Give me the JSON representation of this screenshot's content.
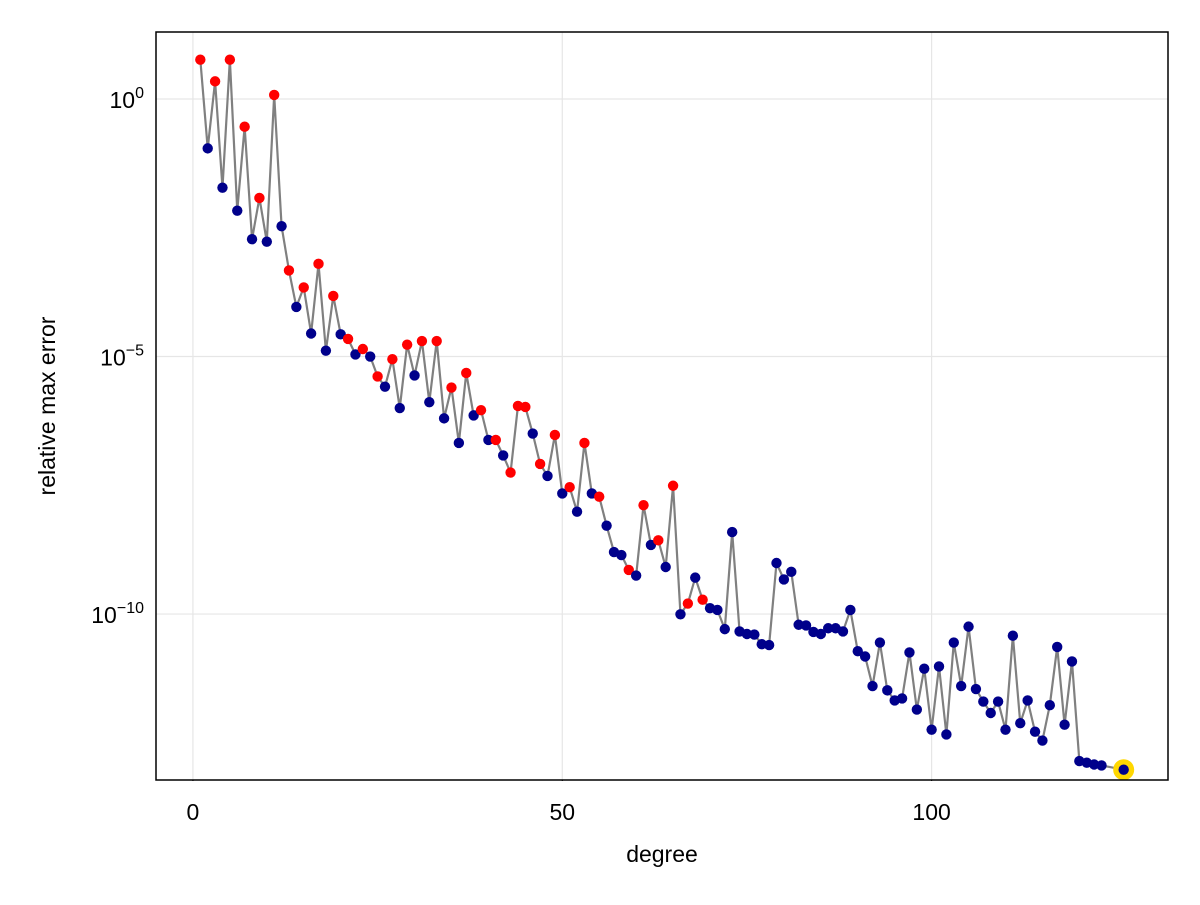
{
  "chart_data": {
    "type": "scatter",
    "title": "",
    "xlabel": "degree",
    "ylabel": "relative max error",
    "xlim": [
      -5,
      132
    ],
    "ylim": [
      6e-14,
      20
    ],
    "xscale": "linear",
    "yscale": "log",
    "grid": true,
    "legend": false,
    "x_ticks": [
      0,
      50,
      100
    ],
    "y_ticks": [
      {
        "value": 1,
        "base": "10",
        "exp": "0"
      },
      {
        "value": 1e-05,
        "base": "10",
        "exp": "−5"
      },
      {
        "value": 1e-10,
        "base": "10",
        "exp": "−10"
      }
    ],
    "colors": {
      "line": "#808080",
      "positive_point": "#ff0000",
      "negative_point": "#00008b",
      "highlight_ring": "#ffd700",
      "grid": "#e6e6e6",
      "frame": "#000000"
    },
    "series": [
      {
        "style": "connecting-line",
        "color": "#808080",
        "points": [
          [
            1,
            5.8
          ],
          [
            2,
            0.11
          ],
          [
            3,
            2.2
          ],
          [
            4,
            0.019
          ],
          [
            5,
            5.8
          ],
          [
            6,
            0.0068
          ],
          [
            7,
            0.29
          ],
          [
            8,
            0.0019
          ],
          [
            9,
            0.012
          ],
          [
            10,
            0.0017
          ],
          [
            11,
            1.2
          ],
          [
            12,
            0.0034
          ],
          [
            13,
            0.00047
          ],
          [
            14,
            9.2e-05
          ],
          [
            15,
            0.00022
          ],
          [
            16,
            2.8e-05
          ],
          [
            17,
            0.00063
          ],
          [
            18,
            1.3e-05
          ],
          [
            19,
            0.00015
          ],
          [
            20,
            2.7e-05
          ],
          [
            21,
            2.2e-05
          ],
          [
            22,
            1.1e-05
          ],
          [
            23,
            1.4e-05
          ],
          [
            24,
            1e-05
          ],
          [
            25,
            4.1e-06
          ],
          [
            26,
            2.6e-06
          ],
          [
            27,
            8.9e-06
          ],
          [
            28,
            1e-06
          ],
          [
            29,
            1.7e-05
          ],
          [
            30,
            4.3e-06
          ],
          [
            31,
            2e-05
          ],
          [
            32,
            1.3e-06
          ],
          [
            33,
            2e-05
          ],
          [
            34,
            6.3e-07
          ],
          [
            35,
            2.5e-06
          ],
          [
            36,
            2.1e-07
          ],
          [
            37,
            4.8e-06
          ],
          [
            38,
            7.2e-07
          ],
          [
            39,
            9.1e-07
          ],
          [
            40,
            2.4e-07
          ],
          [
            41,
            2.4e-07
          ],
          [
            42,
            1.2e-07
          ],
          [
            43,
            5.6e-08
          ],
          [
            44,
            1.1e-06
          ],
          [
            45,
            1.05e-06
          ],
          [
            46,
            3.2e-07
          ],
          [
            47,
            8.2e-08
          ],
          [
            48,
            4.8e-08
          ],
          [
            49,
            3e-07
          ],
          [
            50,
            2.2e-08
          ],
          [
            51,
            2.9e-08
          ],
          [
            52,
            9.7e-09
          ],
          [
            53,
            2.1e-07
          ],
          [
            54,
            2.2e-08
          ],
          [
            55,
            1.9e-08
          ],
          [
            56,
            5.2e-09
          ],
          [
            57,
            1.6e-09
          ],
          [
            58,
            1.4e-09
          ],
          [
            59,
            7.2e-10
          ],
          [
            60,
            5.6e-10
          ],
          [
            61,
            1.3e-08
          ],
          [
            62,
            2.2e-09
          ],
          [
            63,
            2.7e-09
          ],
          [
            64,
            8.2e-10
          ],
          [
            65,
            3.1e-08
          ],
          [
            66,
            9.9e-11
          ],
          [
            67,
            1.6e-10
          ],
          [
            68,
            5.1e-10
          ],
          [
            69,
            1.9e-10
          ],
          [
            70,
            1.3e-10
          ],
          [
            71,
            1.2e-10
          ],
          [
            72,
            5.1e-11
          ],
          [
            73,
            3.9e-09
          ],
          [
            74,
            4.6e-11
          ],
          [
            75,
            4.1e-11
          ],
          [
            76,
            4e-11
          ],
          [
            77,
            2.6e-11
          ],
          [
            78,
            2.5e-11
          ],
          [
            79,
            9.8e-10
          ],
          [
            80,
            4.7e-10
          ],
          [
            81,
            6.6e-10
          ],
          [
            82,
            6.2e-11
          ],
          [
            83,
            6e-11
          ],
          [
            84,
            4.5e-11
          ],
          [
            85,
            4.1e-11
          ],
          [
            86,
            5.3e-11
          ],
          [
            87,
            5.3e-11
          ],
          [
            88,
            4.6e-11
          ],
          [
            89,
            1.2e-10
          ],
          [
            90,
            1.9e-11
          ],
          [
            91,
            1.5e-11
          ],
          [
            92,
            4e-12
          ],
          [
            93,
            2.8e-11
          ],
          [
            94,
            3.3e-12
          ],
          [
            95,
            2.1e-12
          ],
          [
            96,
            2.3e-12
          ],
          [
            97,
            1.8e-11
          ],
          [
            98,
            1.4e-12
          ],
          [
            99,
            8.7e-12
          ],
          [
            100,
            5.7e-13
          ],
          [
            101,
            9.6e-12
          ],
          [
            102,
            4.6e-13
          ],
          [
            103,
            2.8e-11
          ],
          [
            104,
            4e-12
          ],
          [
            105,
            5.7e-11
          ],
          [
            106,
            3.5e-12
          ],
          [
            107,
            2e-12
          ],
          [
            108,
            1.2e-12
          ],
          [
            109,
            2e-12
          ],
          [
            110,
            5.7e-13
          ],
          [
            111,
            3.8e-11
          ],
          [
            112,
            7.6e-13
          ],
          [
            113,
            2.1e-12
          ],
          [
            114,
            5.2e-13
          ],
          [
            115,
            3.5e-13
          ],
          [
            116,
            1.7e-12
          ],
          [
            117,
            2.3e-11
          ],
          [
            118,
            7.1e-13
          ],
          [
            119,
            1.2e-11
          ],
          [
            120,
            1.4e-13
          ],
          [
            121,
            1.3e-13
          ],
          [
            122,
            1.2e-13
          ],
          [
            123,
            1.15e-13
          ],
          [
            126,
            9.5e-14
          ]
        ]
      }
    ],
    "markers": [
      {
        "x": 1,
        "y": 5.8,
        "sign": "pos"
      },
      {
        "x": 2,
        "y": 0.11,
        "sign": "neg"
      },
      {
        "x": 3,
        "y": 2.2,
        "sign": "pos"
      },
      {
        "x": 4,
        "y": 0.019,
        "sign": "neg"
      },
      {
        "x": 5,
        "y": 5.8,
        "sign": "pos"
      },
      {
        "x": 6,
        "y": 0.0068,
        "sign": "neg"
      },
      {
        "x": 7,
        "y": 0.29,
        "sign": "pos"
      },
      {
        "x": 8,
        "y": 0.0019,
        "sign": "neg"
      },
      {
        "x": 9,
        "y": 0.012,
        "sign": "pos"
      },
      {
        "x": 10,
        "y": 0.0017,
        "sign": "neg"
      },
      {
        "x": 11,
        "y": 1.2,
        "sign": "pos"
      },
      {
        "x": 12,
        "y": 0.0034,
        "sign": "neg"
      },
      {
        "x": 13,
        "y": 0.00047,
        "sign": "pos"
      },
      {
        "x": 14,
        "y": 9.2e-05,
        "sign": "neg"
      },
      {
        "x": 15,
        "y": 0.00022,
        "sign": "pos"
      },
      {
        "x": 16,
        "y": 2.8e-05,
        "sign": "neg"
      },
      {
        "x": 17,
        "y": 0.00063,
        "sign": "pos"
      },
      {
        "x": 18,
        "y": 1.3e-05,
        "sign": "neg"
      },
      {
        "x": 19,
        "y": 0.00015,
        "sign": "pos"
      },
      {
        "x": 20,
        "y": 2.7e-05,
        "sign": "neg"
      },
      {
        "x": 21,
        "y": 2.2e-05,
        "sign": "pos"
      },
      {
        "x": 22,
        "y": 1.1e-05,
        "sign": "neg"
      },
      {
        "x": 23,
        "y": 1.4e-05,
        "sign": "pos"
      },
      {
        "x": 24,
        "y": 1e-05,
        "sign": "neg"
      },
      {
        "x": 25,
        "y": 4.1e-06,
        "sign": "pos"
      },
      {
        "x": 26,
        "y": 2.6e-06,
        "sign": "neg"
      },
      {
        "x": 27,
        "y": 8.9e-06,
        "sign": "pos"
      },
      {
        "x": 28,
        "y": 1e-06,
        "sign": "neg"
      },
      {
        "x": 29,
        "y": 1.7e-05,
        "sign": "pos"
      },
      {
        "x": 30,
        "y": 4.3e-06,
        "sign": "neg"
      },
      {
        "x": 31,
        "y": 2e-05,
        "sign": "pos"
      },
      {
        "x": 32,
        "y": 1.3e-06,
        "sign": "neg"
      },
      {
        "x": 33,
        "y": 2e-05,
        "sign": "pos"
      },
      {
        "x": 34,
        "y": 6.3e-07,
        "sign": "neg"
      },
      {
        "x": 35,
        "y": 2.5e-06,
        "sign": "pos"
      },
      {
        "x": 36,
        "y": 2.1e-07,
        "sign": "neg"
      },
      {
        "x": 37,
        "y": 4.8e-06,
        "sign": "pos"
      },
      {
        "x": 38,
        "y": 7.2e-07,
        "sign": "neg"
      },
      {
        "x": 39,
        "y": 9.1e-07,
        "sign": "pos"
      },
      {
        "x": 40,
        "y": 2.4e-07,
        "sign": "neg"
      },
      {
        "x": 41,
        "y": 2.4e-07,
        "sign": "pos"
      },
      {
        "x": 42,
        "y": 1.2e-07,
        "sign": "neg"
      },
      {
        "x": 43,
        "y": 5.6e-08,
        "sign": "pos"
      },
      {
        "x": 44,
        "y": 1.1e-06,
        "sign": "pos"
      },
      {
        "x": 45,
        "y": 1.05e-06,
        "sign": "pos"
      },
      {
        "x": 46,
        "y": 3.2e-07,
        "sign": "neg"
      },
      {
        "x": 47,
        "y": 8.2e-08,
        "sign": "pos"
      },
      {
        "x": 48,
        "y": 4.8e-08,
        "sign": "neg"
      },
      {
        "x": 49,
        "y": 3e-07,
        "sign": "pos"
      },
      {
        "x": 50,
        "y": 2.2e-08,
        "sign": "neg"
      },
      {
        "x": 51,
        "y": 2.9e-08,
        "sign": "pos"
      },
      {
        "x": 52,
        "y": 9.7e-09,
        "sign": "neg"
      },
      {
        "x": 53,
        "y": 2.1e-07,
        "sign": "pos"
      },
      {
        "x": 54,
        "y": 2.2e-08,
        "sign": "neg"
      },
      {
        "x": 55,
        "y": 1.9e-08,
        "sign": "pos"
      },
      {
        "x": 56,
        "y": 5.2e-09,
        "sign": "neg"
      },
      {
        "x": 57,
        "y": 1.6e-09,
        "sign": "neg"
      },
      {
        "x": 58,
        "y": 1.4e-09,
        "sign": "neg"
      },
      {
        "x": 59,
        "y": 7.2e-10,
        "sign": "pos"
      },
      {
        "x": 60,
        "y": 5.6e-10,
        "sign": "neg"
      },
      {
        "x": 61,
        "y": 1.3e-08,
        "sign": "pos"
      },
      {
        "x": 62,
        "y": 2.2e-09,
        "sign": "neg"
      },
      {
        "x": 63,
        "y": 2.7e-09,
        "sign": "pos"
      },
      {
        "x": 64,
        "y": 8.2e-10,
        "sign": "neg"
      },
      {
        "x": 65,
        "y": 3.1e-08,
        "sign": "pos"
      },
      {
        "x": 66,
        "y": 9.9e-11,
        "sign": "neg"
      },
      {
        "x": 67,
        "y": 1.6e-10,
        "sign": "pos"
      },
      {
        "x": 68,
        "y": 5.1e-10,
        "sign": "neg"
      },
      {
        "x": 69,
        "y": 1.9e-10,
        "sign": "pos"
      },
      {
        "x": 70,
        "y": 1.3e-10,
        "sign": "neg"
      },
      {
        "x": 71,
        "y": 1.2e-10,
        "sign": "neg"
      },
      {
        "x": 72,
        "y": 5.1e-11,
        "sign": "neg"
      },
      {
        "x": 73,
        "y": 3.9e-09,
        "sign": "neg"
      },
      {
        "x": 74,
        "y": 4.6e-11,
        "sign": "neg"
      },
      {
        "x": 75,
        "y": 4.1e-11,
        "sign": "neg"
      },
      {
        "x": 76,
        "y": 4e-11,
        "sign": "neg"
      },
      {
        "x": 77,
        "y": 2.6e-11,
        "sign": "neg"
      },
      {
        "x": 78,
        "y": 2.5e-11,
        "sign": "neg"
      },
      {
        "x": 79,
        "y": 9.8e-10,
        "sign": "neg"
      },
      {
        "x": 80,
        "y": 4.7e-10,
        "sign": "neg"
      },
      {
        "x": 81,
        "y": 6.6e-10,
        "sign": "neg"
      },
      {
        "x": 82,
        "y": 6.2e-11,
        "sign": "neg"
      },
      {
        "x": 83,
        "y": 6e-11,
        "sign": "neg"
      },
      {
        "x": 84,
        "y": 4.5e-11,
        "sign": "neg"
      },
      {
        "x": 85,
        "y": 4.1e-11,
        "sign": "neg"
      },
      {
        "x": 86,
        "y": 5.3e-11,
        "sign": "neg"
      },
      {
        "x": 87,
        "y": 5.3e-11,
        "sign": "neg"
      },
      {
        "x": 88,
        "y": 4.6e-11,
        "sign": "neg"
      },
      {
        "x": 89,
        "y": 1.2e-10,
        "sign": "neg"
      },
      {
        "x": 90,
        "y": 1.9e-11,
        "sign": "neg"
      },
      {
        "x": 91,
        "y": 1.5e-11,
        "sign": "neg"
      },
      {
        "x": 92,
        "y": 4e-12,
        "sign": "neg"
      },
      {
        "x": 93,
        "y": 2.8e-11,
        "sign": "neg"
      },
      {
        "x": 94,
        "y": 3.3e-12,
        "sign": "neg"
      },
      {
        "x": 95,
        "y": 2.1e-12,
        "sign": "neg"
      },
      {
        "x": 96,
        "y": 2.3e-12,
        "sign": "neg"
      },
      {
        "x": 97,
        "y": 1.8e-11,
        "sign": "neg"
      },
      {
        "x": 98,
        "y": 1.4e-12,
        "sign": "neg"
      },
      {
        "x": 99,
        "y": 8.7e-12,
        "sign": "neg"
      },
      {
        "x": 100,
        "y": 5.7e-13,
        "sign": "neg"
      },
      {
        "x": 101,
        "y": 9.6e-12,
        "sign": "neg"
      },
      {
        "x": 102,
        "y": 4.6e-13,
        "sign": "neg"
      },
      {
        "x": 103,
        "y": 2.8e-11,
        "sign": "neg"
      },
      {
        "x": 104,
        "y": 4e-12,
        "sign": "neg"
      },
      {
        "x": 105,
        "y": 5.7e-11,
        "sign": "neg"
      },
      {
        "x": 106,
        "y": 3.5e-12,
        "sign": "neg"
      },
      {
        "x": 107,
        "y": 2e-12,
        "sign": "neg"
      },
      {
        "x": 108,
        "y": 1.2e-12,
        "sign": "neg"
      },
      {
        "x": 109,
        "y": 2e-12,
        "sign": "neg"
      },
      {
        "x": 110,
        "y": 5.7e-13,
        "sign": "neg"
      },
      {
        "x": 111,
        "y": 3.8e-11,
        "sign": "neg"
      },
      {
        "x": 112,
        "y": 7.6e-13,
        "sign": "neg"
      },
      {
        "x": 113,
        "y": 2.1e-12,
        "sign": "neg"
      },
      {
        "x": 114,
        "y": 5.2e-13,
        "sign": "neg"
      },
      {
        "x": 115,
        "y": 3.5e-13,
        "sign": "neg"
      },
      {
        "x": 116,
        "y": 1.7e-12,
        "sign": "neg"
      },
      {
        "x": 117,
        "y": 2.3e-11,
        "sign": "neg"
      },
      {
        "x": 118,
        "y": 7.1e-13,
        "sign": "neg"
      },
      {
        "x": 119,
        "y": 1.2e-11,
        "sign": "neg"
      },
      {
        "x": 120,
        "y": 1.4e-13,
        "sign": "neg"
      },
      {
        "x": 121,
        "y": 1.3e-13,
        "sign": "neg"
      },
      {
        "x": 122,
        "y": 1.2e-13,
        "sign": "neg"
      },
      {
        "x": 123,
        "y": 1.15e-13,
        "sign": "neg"
      },
      {
        "x": 126,
        "y": 9.5e-14,
        "sign": "neg",
        "highlight": true
      }
    ]
  }
}
